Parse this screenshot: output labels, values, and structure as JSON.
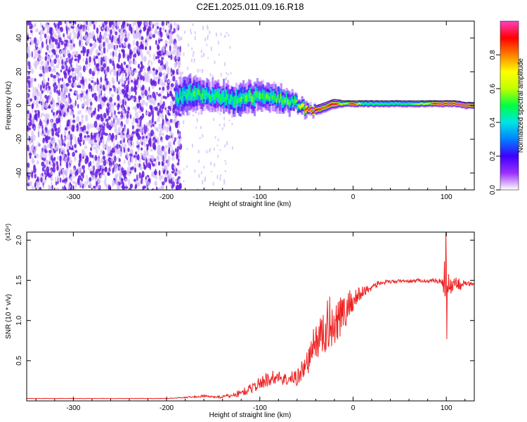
{
  "title": "C2E1.2025.011.09.16.R18",
  "colors": {
    "snr_line": "#ee2222",
    "trace_core": "#ff3333",
    "trace_edge": "#111111",
    "noise": "#6a1fe0",
    "noise_light": "#d6c2f7"
  },
  "chart_data": [
    {
      "type": "heatmap",
      "name": "spectrogram",
      "xlabel": "Height of straight line (km)",
      "ylabel": "Frequency (Hz)",
      "xlim": [
        -350,
        130
      ],
      "ylim": [
        -50,
        50
      ],
      "xticks": [
        -300,
        -200,
        -100,
        0,
        100
      ],
      "yticks": [
        -40,
        -20,
        0,
        20,
        40
      ],
      "xtick_labels": [
        "-300",
        "-200",
        "-100",
        "0",
        "100"
      ],
      "ytick_labels": [
        "-40",
        "-20",
        "0",
        "20",
        "40"
      ],
      "colorbar": {
        "label": "Normalized spectral amplitude",
        "range": [
          0,
          1
        ],
        "ticks": [
          0.0,
          0.2,
          0.4,
          0.6,
          0.8
        ],
        "tick_labels": [
          "0.0",
          "0.2",
          "0.4",
          "0.6",
          "0.8"
        ],
        "colormap": [
          "#ffffff",
          "#9b30ff",
          "#3c00ff",
          "#0080ff",
          "#00e5e5",
          "#00ff40",
          "#c0ff00",
          "#ffff00",
          "#ff8000",
          "#ff0000",
          "#ff40c0"
        ]
      },
      "noise_region": {
        "x_range": [
          -350,
          -185
        ],
        "sparse_range": [
          -185,
          -130
        ]
      },
      "trace": {
        "x": [
          -190,
          -180,
          -170,
          -160,
          -150,
          -140,
          -130,
          -120,
          -110,
          -100,
          -90,
          -80,
          -70,
          -60,
          -50,
          -45,
          -40,
          -30,
          -20,
          -10,
          0,
          10,
          20,
          40,
          60,
          80,
          90,
          100,
          110,
          120,
          130
        ],
        "freq": [
          4,
          6,
          7,
          6,
          5,
          4,
          3,
          4,
          5,
          6,
          5,
          4,
          3,
          1,
          -2,
          -3,
          -3,
          -1,
          1,
          1,
          1,
          1,
          1,
          1,
          1,
          1,
          1,
          1,
          1,
          0,
          0
        ],
        "half_width": [
          8,
          9,
          9,
          8,
          8,
          8,
          8,
          8,
          8,
          8,
          7,
          7,
          6,
          5,
          4,
          3,
          3,
          3,
          3,
          2,
          2,
          2,
          2,
          2,
          2,
          2,
          2,
          2,
          2,
          2,
          2
        ],
        "peak_amplitude": [
          0.45,
          0.45,
          0.5,
          0.45,
          0.45,
          0.45,
          0.45,
          0.5,
          0.5,
          0.5,
          0.5,
          0.5,
          0.5,
          0.5,
          0.9,
          0.9,
          0.9,
          0.8,
          0.95,
          0.6,
          0.95,
          0.5,
          0.5,
          0.5,
          0.5,
          0.7,
          0.95,
          0.95,
          0.95,
          0.95,
          0.95
        ]
      }
    },
    {
      "type": "line",
      "name": "snr",
      "xlabel": "Height of straight line (km)",
      "ylabel": "SNR (10 * v/v)",
      "y_multiplier": "(x10⁴)",
      "xlim": [
        -350,
        130
      ],
      "ylim": [
        0,
        2.1
      ],
      "xticks": [
        -300,
        -200,
        -100,
        0,
        100
      ],
      "yticks": [
        0.5,
        1.0,
        1.5,
        2.0
      ],
      "xtick_labels": [
        "-300",
        "-200",
        "-100",
        "0",
        "100"
      ],
      "ytick_labels": [
        "0.5",
        "1.0",
        "1.5",
        "2.0"
      ],
      "series": [
        {
          "x": [
            -350,
            -300,
            -250,
            -200,
            -185,
            -170,
            -160,
            -150,
            -140,
            -130,
            -120,
            -110,
            -100,
            -90,
            -80,
            -70,
            -60,
            -50,
            -45,
            -40,
            -35,
            -30,
            -25,
            -20,
            -15,
            -10,
            -5,
            0,
            5,
            10,
            20,
            30,
            40,
            50,
            60,
            70,
            80,
            90,
            95,
            98,
            100,
            102,
            105,
            110,
            115,
            120,
            130
          ],
          "y": [
            0.03,
            0.03,
            0.03,
            0.03,
            0.04,
            0.05,
            0.06,
            0.05,
            0.05,
            0.07,
            0.1,
            0.15,
            0.22,
            0.28,
            0.3,
            0.26,
            0.3,
            0.45,
            0.6,
            0.75,
            0.8,
            0.85,
            1.0,
            0.95,
            1.1,
            1.05,
            1.2,
            1.25,
            1.3,
            1.35,
            1.42,
            1.47,
            1.48,
            1.49,
            1.49,
            1.5,
            1.49,
            1.5,
            1.47,
            1.55,
            1.4,
            1.5,
            1.45,
            1.48,
            1.45,
            1.46,
            1.45
          ],
          "noise": [
            0.002,
            0.002,
            0.002,
            0.003,
            0.006,
            0.01,
            0.015,
            0.01,
            0.02,
            0.03,
            0.05,
            0.06,
            0.08,
            0.1,
            0.08,
            0.08,
            0.12,
            0.15,
            0.2,
            0.25,
            0.25,
            0.3,
            0.35,
            0.3,
            0.3,
            0.25,
            0.2,
            0.15,
            0.12,
            0.08,
            0.05,
            0.03,
            0.025,
            0.02,
            0.02,
            0.02,
            0.02,
            0.03,
            0.05,
            0.25,
            0.3,
            0.2,
            0.12,
            0.08,
            0.08,
            0.04,
            0.02
          ],
          "max_y": 2.12,
          "min_y_near_100": 0.77
        }
      ]
    }
  ]
}
